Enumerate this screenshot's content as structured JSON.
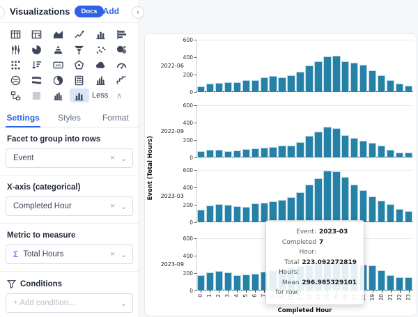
{
  "glyphs": {
    "clear": "×",
    "chevron_down": "⌄",
    "collapse_left": "‹",
    "less_caret": "∧",
    "plus": "+"
  },
  "sidebar": {
    "header": {
      "title": "Visualizations",
      "docs_badge": "Docs",
      "add_label": "Add"
    },
    "viz_picker": {
      "icons": [
        {
          "name": "table"
        },
        {
          "name": "pivot-table"
        },
        {
          "name": "area-chart"
        },
        {
          "name": "line-chart"
        },
        {
          "name": "bar-chart"
        },
        {
          "name": "horizontal-bar-chart"
        },
        {
          "name": "candlestick-chart"
        },
        {
          "name": "pie-chart"
        },
        {
          "name": "pyramid-chart"
        },
        {
          "name": "funnel-chart"
        },
        {
          "name": "scatter-plot"
        },
        {
          "name": "bubble-map"
        },
        {
          "name": "dot-matrix"
        },
        {
          "name": "sorted-bars"
        },
        {
          "name": "kpi"
        },
        {
          "name": "radar-chart"
        },
        {
          "name": "cloud"
        },
        {
          "name": "gauge"
        },
        {
          "name": "chord-chart"
        },
        {
          "name": "sankey-chart"
        },
        {
          "name": "swirl-chart"
        },
        {
          "name": "calculator-table"
        },
        {
          "name": "histogram"
        },
        {
          "name": "step-chart"
        },
        {
          "name": "flowchart"
        },
        {
          "name": "placeholder"
        },
        {
          "name": "histogram-small"
        },
        {
          "name": "bar-chart-active",
          "active": true
        }
      ],
      "less_label": "Less"
    },
    "tabs": [
      {
        "label": "Settings",
        "active": true
      },
      {
        "label": "Styles",
        "active": false
      },
      {
        "label": "Format",
        "active": false
      }
    ],
    "facet_section": {
      "label": "Facet to group into rows",
      "value": "Event"
    },
    "xaxis_section": {
      "label": "X-axis (categorical)",
      "value": "Completed Hour"
    },
    "metric_section": {
      "label": "Metric to measure",
      "sigma": "Σ",
      "value": "Total Hours"
    },
    "conditions_section": {
      "label": "Conditions",
      "placeholder": "+ Add condition..."
    }
  },
  "chart_data": {
    "type": "bar",
    "x": [
      "0",
      "1",
      "2",
      "3",
      "4",
      "5",
      "6",
      "7",
      "8",
      "9",
      "10",
      "11",
      "12",
      "13",
      "14",
      "15",
      "16",
      "17",
      "18",
      "19",
      "20",
      "21",
      "22",
      "23"
    ],
    "xlabel": "Completed Hour",
    "ylabel": "Event (Total Hours)",
    "ylim": [
      0,
      600
    ],
    "yticks": [
      0,
      200,
      400,
      600
    ],
    "grid": false,
    "legend": "none",
    "bar_color": "#2581a6",
    "bar_edge_color": "#b9d8e6",
    "series": [
      {
        "name": "2022-06",
        "values": [
          65,
          95,
          105,
          110,
          110,
          135,
          135,
          170,
          185,
          172,
          190,
          235,
          305,
          350,
          405,
          418,
          352,
          340,
          315,
          250,
          195,
          140,
          95,
          70
        ]
      },
      {
        "name": "2022-09",
        "values": [
          70,
          85,
          90,
          75,
          78,
          93,
          103,
          110,
          123,
          140,
          133,
          175,
          245,
          295,
          355,
          335,
          260,
          225,
          195,
          165,
          135,
          90,
          58,
          55
        ]
      },
      {
        "name": "2023-03",
        "values": [
          148,
          195,
          205,
          200,
          183,
          180,
          218,
          223,
          240,
          255,
          290,
          345,
          435,
          505,
          595,
          585,
          520,
          430,
          365,
          300,
          245,
          205,
          155,
          130
        ]
      },
      {
        "name": "2023-09",
        "values": [
          180,
          210,
          222,
          205,
          178,
          185,
          195,
          215,
          235,
          250,
          265,
          282,
          300,
          315,
          330,
          335,
          330,
          315,
          300,
          285,
          235,
          178,
          150,
          152
        ]
      }
    ]
  },
  "tooltip": {
    "rows": [
      {
        "label": "Event:",
        "value": "2023-03"
      },
      {
        "label": "Completed Hour:",
        "value": "7"
      },
      {
        "label": "Total Hours:",
        "value": "223.092272819"
      },
      {
        "label": "Mean for row:",
        "value": "296.985329101"
      }
    ]
  }
}
